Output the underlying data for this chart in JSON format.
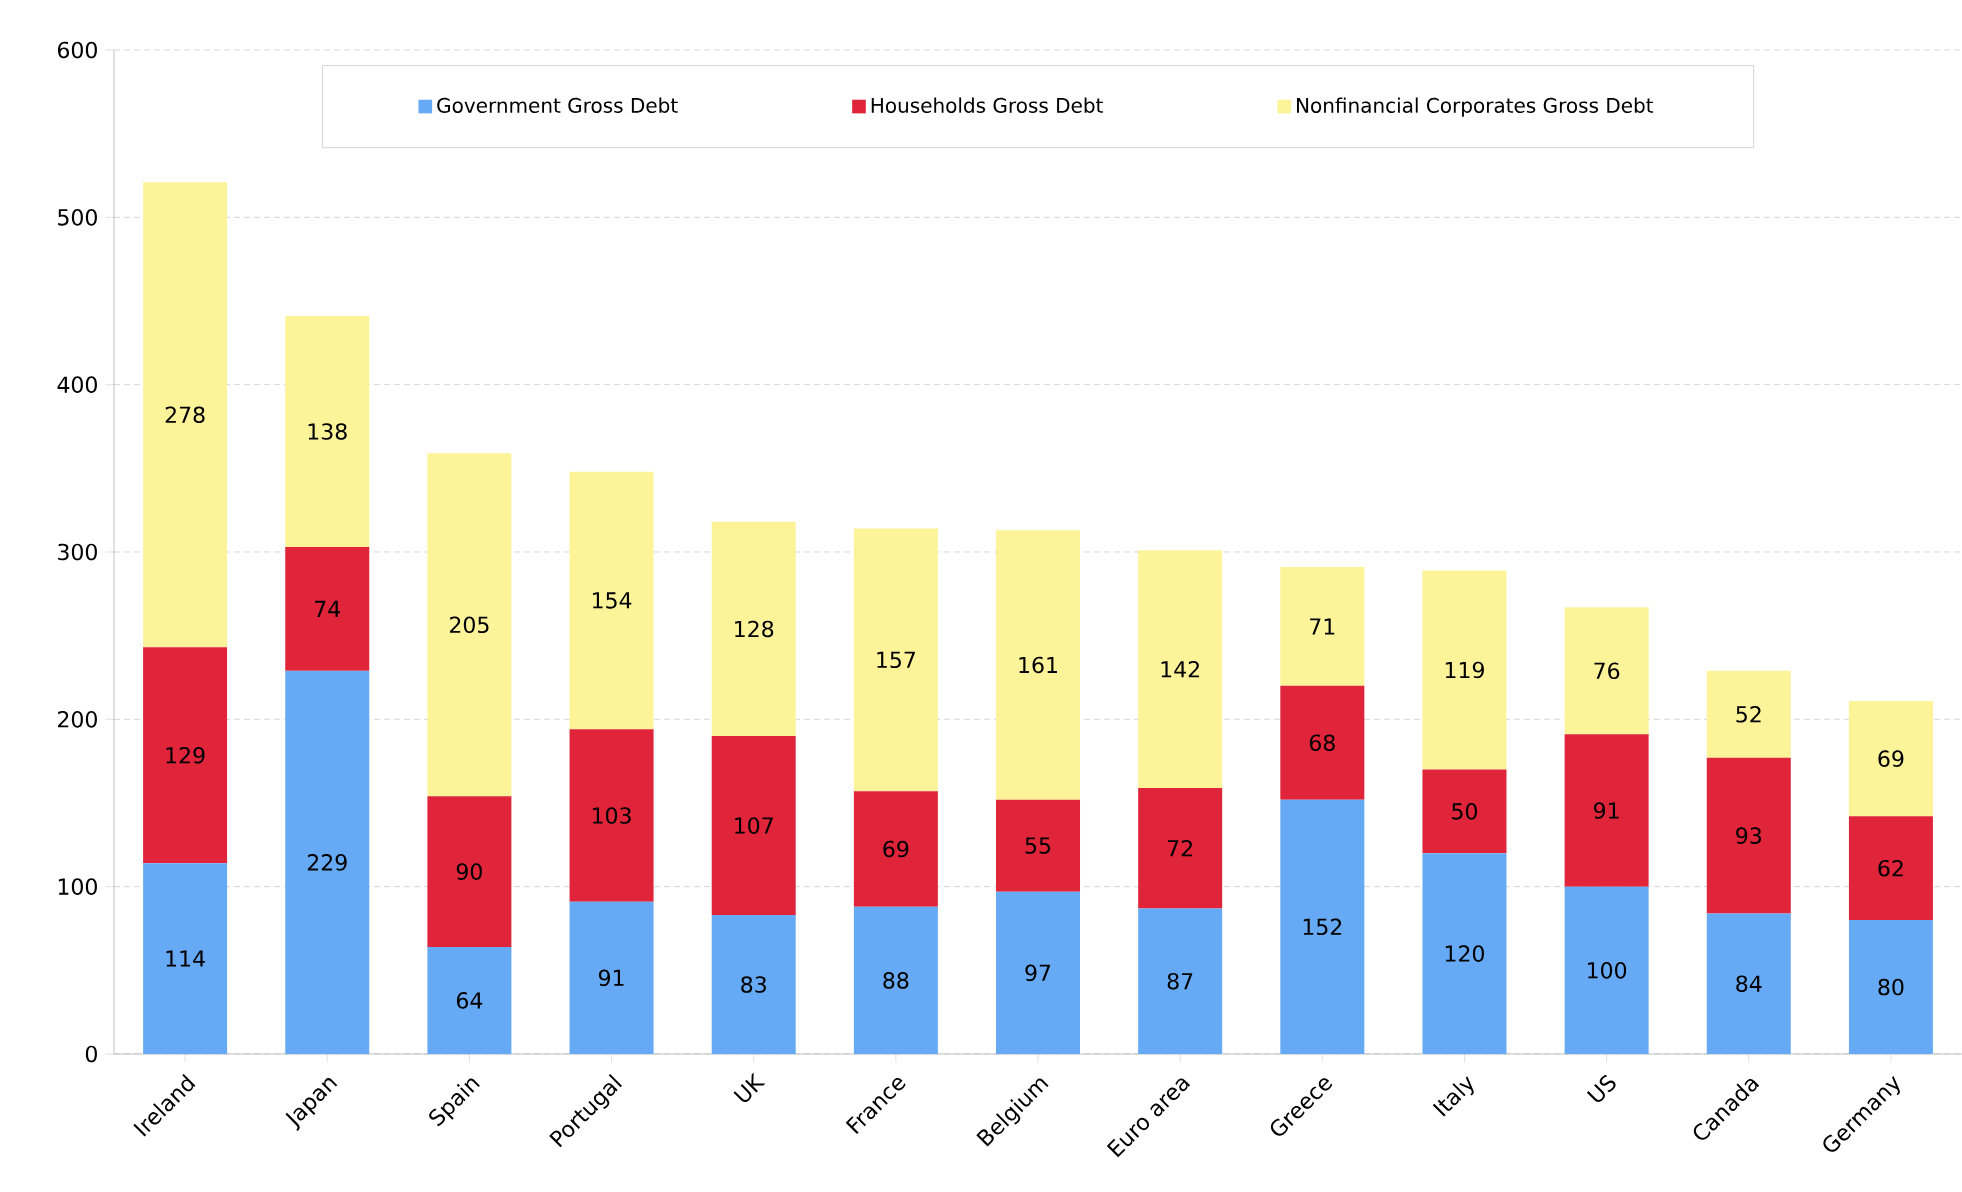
{
  "chart_data": {
    "type": "bar",
    "stacked": true,
    "data_labels": true,
    "grid": "y",
    "legend": "top",
    "categories": [
      "Ireland",
      "Japan",
      "Spain",
      "Portugal",
      "UK",
      "France",
      "Belgium",
      "Euro area",
      "Greece",
      "Italy",
      "US",
      "Canada",
      "Germany"
    ],
    "series": [
      {
        "name": "Government Gross Debt",
        "color": "#66aaf5",
        "values": [
          114,
          229,
          64,
          91,
          83,
          88,
          97,
          87,
          152,
          120,
          100,
          84,
          80
        ]
      },
      {
        "name": "Households Gross Debt",
        "color": "#e0243a",
        "values": [
          129,
          74,
          90,
          103,
          107,
          69,
          55,
          72,
          68,
          50,
          91,
          93,
          62
        ]
      },
      {
        "name": "Nonfinancial Corporates Gross Debt",
        "color": "#fdf49a",
        "values": [
          278,
          138,
          205,
          154,
          128,
          157,
          161,
          142,
          71,
          119,
          76,
          52,
          69
        ]
      }
    ],
    "ylim": [
      0,
      600
    ],
    "yticks": [
      0,
      100,
      200,
      300,
      400,
      500,
      600
    ]
  }
}
